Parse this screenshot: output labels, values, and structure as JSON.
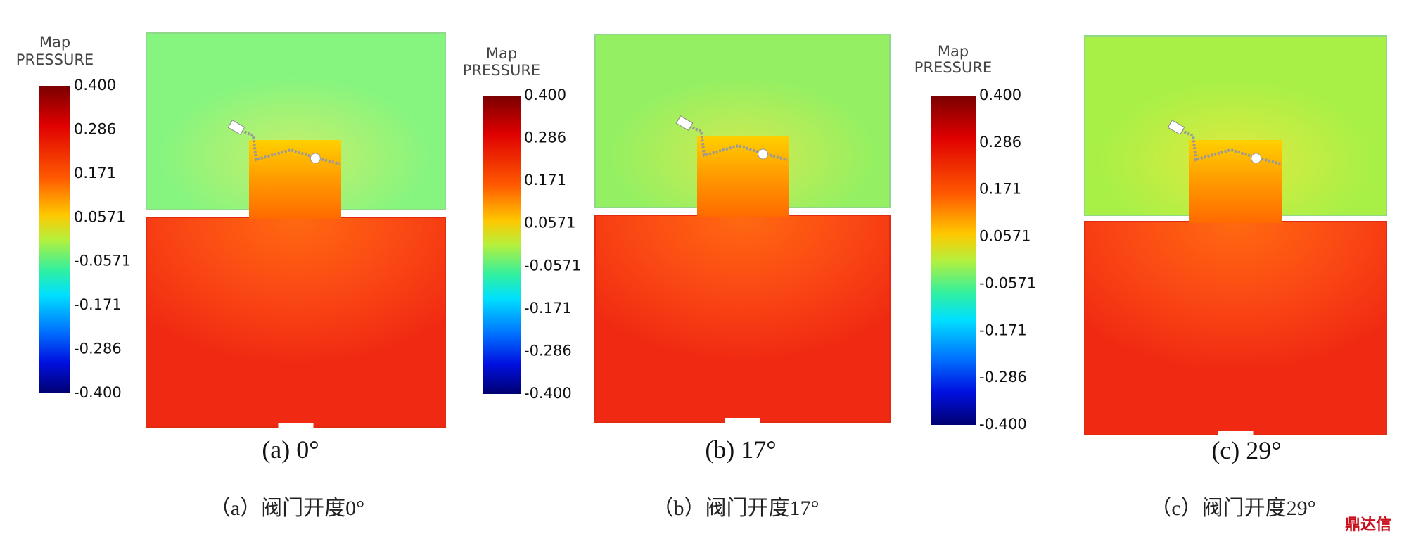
{
  "panels": [
    {
      "legend_title": "Map",
      "legend_subtitle": "PRESSURE",
      "ticks": [
        "0.400",
        "0.286",
        "0.171",
        "0.0571",
        "-0.0571",
        "-0.171",
        "-0.286",
        "-0.400"
      ],
      "label": "(a) 0°",
      "caption": "（a）阀门开度0°"
    },
    {
      "legend_title": "Map",
      "legend_subtitle": "PRESSURE",
      "ticks": [
        "0.400",
        "0.286",
        "0.171",
        "0.0571",
        "-0.0571",
        "-0.171",
        "-0.286",
        "-0.400"
      ],
      "label": "(b) 17°",
      "caption": "（b）阀门开度17°"
    },
    {
      "legend_title": "Map",
      "legend_subtitle": "PRESSURE",
      "ticks": [
        "0.400",
        "0.286",
        "0.171",
        "0.0571",
        "-0.0571",
        "-0.171",
        "-0.286",
        "-0.400"
      ],
      "label": "(c) 29°",
      "caption": "（c）阀门开度29°"
    }
  ],
  "watermark": "鼎达信"
}
